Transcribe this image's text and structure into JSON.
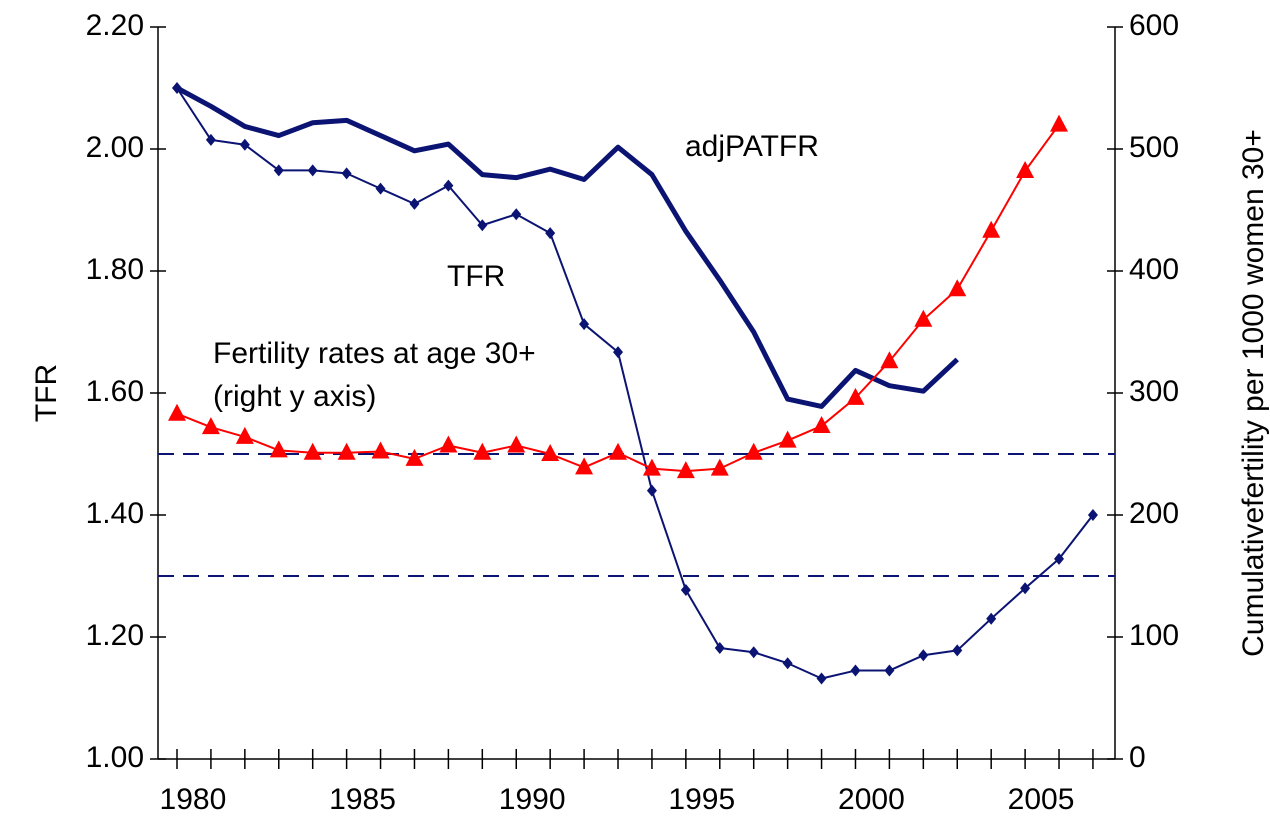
{
  "chart_data": {
    "type": "line",
    "ylabel": "TFR",
    "y2label": "Cumulativefertility per 1000 women 30+",
    "x": [
      1979,
      1980,
      1981,
      1982,
      1983,
      1984,
      1985,
      1986,
      1987,
      1988,
      1989,
      1990,
      1991,
      1992,
      1993,
      1994,
      1995,
      1996,
      1997,
      1998,
      1999,
      2000,
      2001,
      2002,
      2003,
      2004,
      2005,
      2006
    ],
    "xlim": [
      1978.44,
      2006.65
    ],
    "xticks": [
      1980,
      1985,
      1990,
      1995,
      2000,
      2005
    ],
    "xminor_ticks": [
      1979,
      1980,
      1981,
      1982,
      1983,
      1984,
      1985,
      1986,
      1987,
      1988,
      1989,
      1990,
      1991,
      1992,
      1993,
      1994,
      1995,
      1996,
      1997,
      1998,
      1999,
      2000,
      2001,
      2002,
      2003,
      2004,
      2005,
      2006
    ],
    "ylim": [
      1.0,
      2.2
    ],
    "yticks": [
      {
        "value": 1.0,
        "label": "1.00"
      },
      {
        "value": 1.2,
        "label": "1.20"
      },
      {
        "value": 1.4,
        "label": "1.40"
      },
      {
        "value": 1.6,
        "label": "1.60"
      },
      {
        "value": 1.8,
        "label": "1.80"
      },
      {
        "value": 2.0,
        "label": "2.00"
      },
      {
        "value": 2.2,
        "label": "2.20"
      }
    ],
    "y2lim": [
      0,
      600
    ],
    "y2ticks": [
      0,
      100,
      200,
      300,
      400,
      500,
      600
    ],
    "series": [
      {
        "name": "adjPATFR",
        "color": "#0c1473",
        "marker": "none",
        "width": 5,
        "values": [
          2.1,
          2.07,
          2.037,
          2.022,
          2.043,
          2.047,
          2.022,
          1.997,
          2.008,
          1.958,
          1.953,
          1.967,
          1.95,
          2.003,
          1.958,
          1.865,
          1.785,
          1.7,
          1.59,
          1.578,
          1.637,
          1.612,
          1.603,
          1.655,
          null,
          null,
          null,
          null
        ]
      },
      {
        "name": "TFR",
        "color": "#0c1473",
        "marker": "diamond",
        "width": 2,
        "values": [
          2.1,
          2.015,
          2.007,
          1.965,
          1.965,
          1.96,
          1.935,
          1.91,
          1.94,
          1.875,
          1.893,
          1.862,
          1.713,
          1.667,
          1.44,
          1.277,
          1.182,
          1.175,
          1.157,
          1.132,
          1.145,
          1.145,
          1.17,
          1.178,
          1.23,
          1.28,
          1.328,
          1.4
        ]
      },
      {
        "name": "Fertility rates at age 30+",
        "note": "(right y axis)",
        "color": "#ff0000",
        "marker": "triangle",
        "width": 2,
        "axis": "y2",
        "values": [
          283,
          272,
          264,
          253,
          251,
          251,
          252,
          246,
          257,
          251,
          257,
          250,
          239,
          251,
          238,
          236,
          238,
          251,
          261,
          273,
          296,
          326,
          360,
          385,
          433,
          482,
          520,
          null
        ]
      }
    ],
    "reference_lines": [
      {
        "value": 250,
        "axis": "y2",
        "color": "#0c1473"
      },
      {
        "value": 150,
        "axis": "y2",
        "color": "#0c1473"
      }
    ]
  }
}
